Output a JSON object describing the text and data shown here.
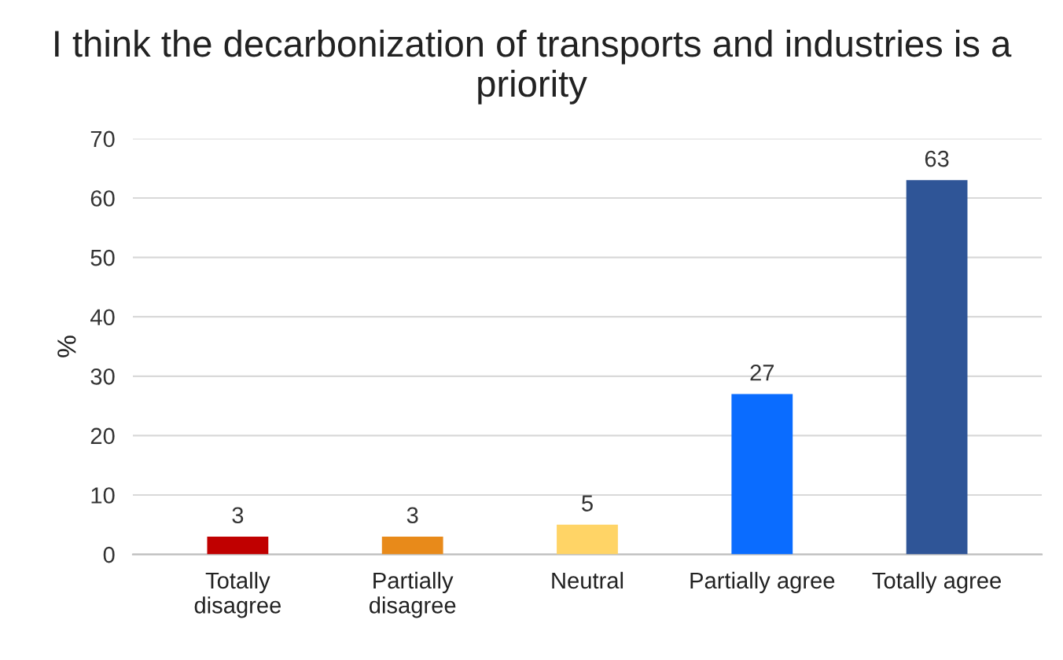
{
  "chart_data": {
    "type": "bar",
    "title": "I think the decarbonization of transports and industries is a priority",
    "ylabel": "%",
    "categories": [
      "Totally\ndisagree",
      "Partially\ndisagree",
      "Neutral",
      "Partially agree",
      "Totally agree"
    ],
    "values": [
      3,
      3,
      5,
      27,
      63
    ],
    "colors": [
      "#c00000",
      "#e88a1a",
      "#ffd466",
      "#0a6cff",
      "#2f5597"
    ],
    "ylim": [
      0,
      70
    ],
    "yticks": [
      0,
      10,
      20,
      30,
      40,
      50,
      60,
      70
    ],
    "grid": "y",
    "data_labels": true
  }
}
